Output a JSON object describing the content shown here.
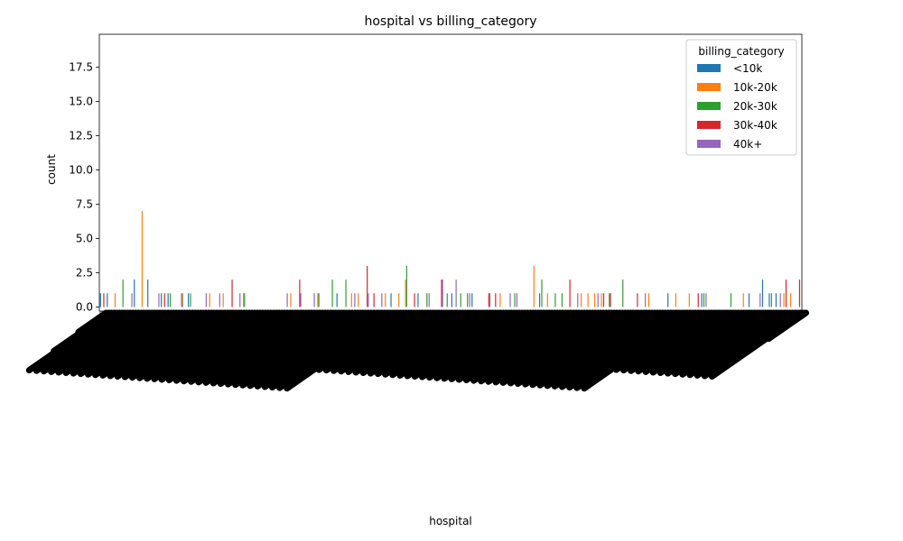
{
  "chart_data": {
    "type": "bar",
    "title": "hospital vs billing_category",
    "xlabel": "hospital",
    "ylabel": "count",
    "ylim": [
      -0.3,
      19.9
    ],
    "yticks": [
      0.0,
      2.5,
      5.0,
      7.5,
      10.0,
      12.5,
      15.0,
      17.5
    ],
    "ytick_labels": [
      "0.0",
      "2.5",
      "5.0",
      "7.5",
      "10.0",
      "12.5",
      "15.0",
      "17.5"
    ],
    "grid": false,
    "legend": {
      "title": "billing_category",
      "placement": "top-right"
    },
    "series": [
      {
        "name": "<10k",
        "color": "#1f77b4",
        "values": [
          1,
          1,
          0,
          0,
          0,
          2,
          0,
          2,
          0,
          1,
          1,
          0,
          1,
          1,
          0,
          0,
          0,
          0,
          0,
          0,
          0,
          0,
          0,
          0,
          0,
          0,
          0,
          0,
          0,
          0,
          0,
          0,
          0,
          0,
          0,
          1,
          0,
          0,
          0,
          0,
          0,
          0,
          0,
          1,
          0,
          0,
          0,
          1,
          0,
          0,
          0,
          0,
          1,
          0,
          0,
          1,
          0,
          0,
          0,
          0,
          0,
          0,
          0,
          0,
          0,
          1,
          0,
          0,
          0,
          0,
          0,
          0,
          0,
          0,
          0,
          0,
          0,
          0,
          0,
          0,
          0,
          0,
          0,
          0,
          1,
          0,
          0,
          0,
          0,
          1,
          0,
          0,
          0,
          0,
          0,
          0,
          1,
          0,
          2,
          1,
          1,
          0,
          0,
          0
        ]
      },
      {
        "name": "10k-20k",
        "color": "#ff7f0e",
        "values": [
          0,
          0,
          1,
          0,
          0,
          0,
          7,
          0,
          0,
          0,
          0,
          0,
          1,
          0,
          0,
          0,
          1,
          0,
          1,
          0,
          0,
          1,
          0,
          0,
          0,
          0,
          0,
          0,
          1,
          0,
          0,
          0,
          1,
          0,
          0,
          0,
          0,
          1,
          1,
          0,
          0,
          0,
          1,
          0,
          1,
          2,
          0,
          0,
          0,
          0,
          0,
          0,
          0,
          0,
          0,
          0,
          0,
          0,
          0,
          1,
          0,
          0,
          0,
          0,
          3,
          0,
          1,
          0,
          0,
          0,
          0,
          1,
          1,
          1,
          1,
          0,
          0,
          0,
          0,
          0,
          0,
          1,
          0,
          0,
          0,
          1,
          0,
          1,
          0,
          0,
          0,
          0,
          0,
          0,
          0,
          1,
          0,
          0,
          0,
          0,
          0,
          1,
          1,
          0
        ]
      },
      {
        "name": "20k-30k",
        "color": "#2ca02c",
        "values": [
          0,
          0,
          0,
          2,
          0,
          0,
          0,
          0,
          0,
          0,
          1,
          0,
          0,
          1,
          0,
          0,
          0,
          0,
          0,
          0,
          0,
          1,
          0,
          0,
          0,
          0,
          0,
          0,
          0,
          0,
          0,
          0,
          1,
          0,
          2,
          0,
          2,
          0,
          0,
          0,
          0,
          0,
          0,
          0,
          0,
          3,
          0,
          0,
          1,
          0,
          0,
          1,
          0,
          1,
          1,
          0,
          0,
          0,
          0,
          0,
          0,
          1,
          0,
          0,
          0,
          2,
          0,
          1,
          1,
          0,
          0,
          0,
          0,
          0,
          0,
          1,
          0,
          2,
          0,
          0,
          0,
          0,
          0,
          0,
          0,
          0,
          0,
          0,
          0,
          1,
          0,
          0,
          0,
          1,
          0,
          0,
          0,
          0,
          0,
          1,
          0,
          0,
          0,
          0
        ]
      },
      {
        "name": "30k-40k",
        "color": "#d62728",
        "values": [
          1,
          0,
          0,
          0,
          0,
          0,
          0,
          0,
          0,
          1,
          0,
          0,
          0,
          0,
          0,
          0,
          0,
          0,
          0,
          2,
          0,
          0,
          0,
          0,
          0,
          0,
          0,
          0,
          0,
          2,
          0,
          0,
          0,
          0,
          0,
          0,
          0,
          0,
          0,
          3,
          1,
          0,
          0,
          0,
          0,
          0,
          1,
          0,
          0,
          0,
          2,
          0,
          0,
          0,
          0,
          0,
          0,
          1,
          1,
          0,
          0,
          0,
          0,
          0,
          0,
          0,
          0,
          0,
          0,
          2,
          0,
          0,
          0,
          0,
          1,
          1,
          0,
          0,
          0,
          1,
          0,
          0,
          0,
          0,
          0,
          0,
          0,
          0,
          1,
          0,
          0,
          0,
          0,
          0,
          0,
          0,
          0,
          0,
          0,
          0,
          0,
          2,
          0,
          2
        ]
      },
      {
        "name": "40k+",
        "color": "#9467bd",
        "values": [
          0,
          0,
          0,
          0,
          1,
          0,
          0,
          0,
          1,
          0,
          0,
          0,
          0,
          0,
          0,
          1,
          0,
          1,
          0,
          0,
          1,
          0,
          0,
          0,
          0,
          0,
          0,
          1,
          0,
          1,
          0,
          1,
          0,
          0,
          0,
          0,
          0,
          1,
          0,
          1,
          0,
          1,
          0,
          0,
          0,
          0,
          0,
          0,
          1,
          0,
          2,
          0,
          2,
          0,
          1,
          0,
          0,
          1,
          0,
          0,
          1,
          1,
          0,
          0,
          0,
          0,
          0,
          0,
          0,
          0,
          1,
          0,
          0,
          1,
          0,
          0,
          0,
          0,
          0,
          0,
          1,
          0,
          0,
          0,
          0,
          0,
          0,
          0,
          0,
          1,
          0,
          0,
          0,
          0,
          0,
          0,
          0,
          1,
          0,
          0,
          1,
          0,
          0,
          0
        ]
      }
    ]
  }
}
